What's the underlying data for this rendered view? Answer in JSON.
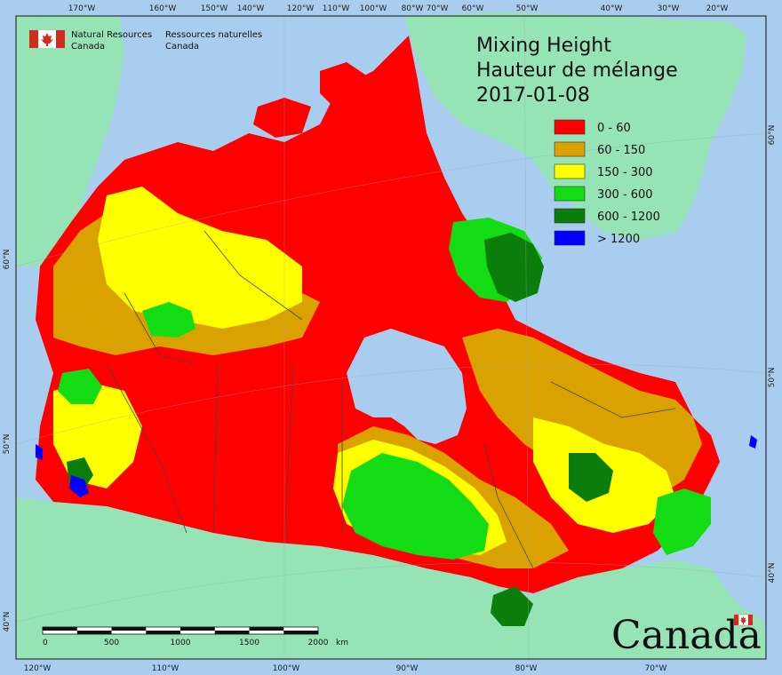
{
  "title": {
    "line1": "Mixing Height",
    "line2": "Hauteur de mélange",
    "date": "2017-01-08"
  },
  "agency": {
    "en_line1": "Natural Resources",
    "en_line2": "Canada",
    "fr_line1": "Ressources naturelles",
    "fr_line2": "Canada",
    "flag_icon": "canada-flag-icon"
  },
  "wordmark": {
    "text": "Canada",
    "icon": "canada-wordmark-flag-icon"
  },
  "legend": {
    "items": [
      {
        "label": "0 - 60",
        "color": "#ff0000"
      },
      {
        "label": "60 - 150",
        "color": "#daa200"
      },
      {
        "label": "150 - 300",
        "color": "#ffff00"
      },
      {
        "label": "300 - 600",
        "color": "#14dc14"
      },
      {
        "label": "600 - 1200",
        "color": "#0a7d0a"
      },
      {
        "label": "> 1200",
        "color": "#0000ff"
      }
    ]
  },
  "colors": {
    "ocean": "#a9cdef",
    "land_other": "#96e3b6",
    "border": "#444444"
  },
  "graticule": {
    "top_labels": [
      "170°W",
      "160°W",
      "150°W",
      "140°W",
      "120°W",
      "110°W",
      "100°W",
      "80°W",
      "70°W",
      "60°W",
      "50°W",
      "40°W",
      "30°W",
      "20°W"
    ],
    "bottom_labels": [
      "120°W",
      "110°W",
      "100°W",
      "90°W",
      "80°W",
      "70°W"
    ],
    "left_labels": [
      "60°N",
      "50°N",
      "40°N"
    ],
    "right_labels": [
      "60°N",
      "50°N",
      "40°N"
    ]
  },
  "scale_bar": {
    "ticks": [
      "0",
      "500",
      "1000",
      "1500",
      "2000"
    ],
    "unit": "km"
  }
}
